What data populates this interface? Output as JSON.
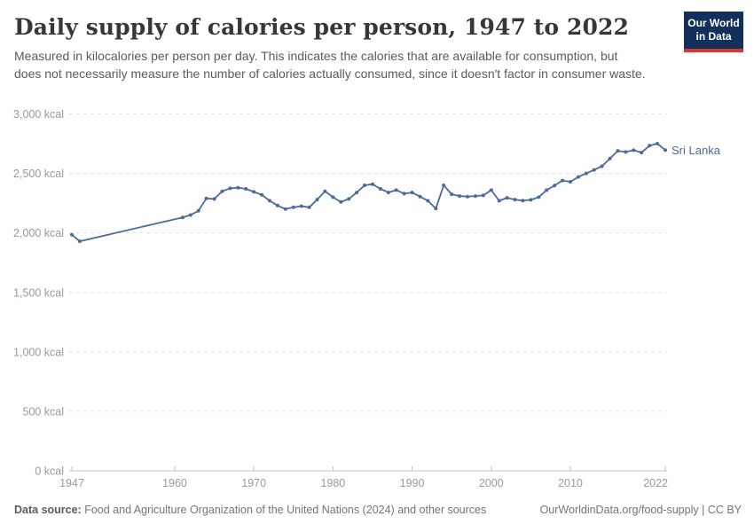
{
  "header": {
    "title": "Daily supply of calories per person, 1947 to 2022",
    "subtitle": "Measured in kilocalories per person per day. This indicates the calories that are available for consumption, but does not necessarily measure the number of calories actually consumed, since it doesn't factor in consumer waste.",
    "logo": {
      "line1": "Our World",
      "line2": "in Data",
      "bg_color": "#12305b",
      "accent_color": "#d7382e"
    }
  },
  "footer": {
    "datasource_label": "Data source:",
    "datasource_text": " Food and Agriculture Organization of the United Nations (2024) and other sources",
    "link_text": "OurWorldinData.org/food-supply | CC BY"
  },
  "colors": {
    "line": "#4C6A9C",
    "grid": "#dcdcdc",
    "axis": "#c2c2c2",
    "tick_label": "#9a9a9a",
    "entity_label": "#4C6A9C"
  },
  "chart_data": {
    "type": "line",
    "title": "Daily supply of calories per person, 1947 to 2022",
    "xlabel": "",
    "ylabel": "",
    "xlim": [
      1947,
      2022
    ],
    "ylim": [
      0,
      3000
    ],
    "grid": "horizontal-dashed",
    "legend_position": "end-of-line-label",
    "xticks": [
      1947,
      1960,
      1970,
      1980,
      1990,
      2000,
      2010,
      2022
    ],
    "yticks": [
      {
        "value": 0,
        "label": "0 kcal"
      },
      {
        "value": 500,
        "label": "500 kcal"
      },
      {
        "value": 1000,
        "label": "1,000 kcal"
      },
      {
        "value": 1500,
        "label": "1,500 kcal"
      },
      {
        "value": 2000,
        "label": "2,000 kcal"
      },
      {
        "value": 2500,
        "label": "2,500 kcal"
      },
      {
        "value": 3000,
        "label": "3,000 kcal"
      }
    ],
    "series": [
      {
        "name": "Sri Lanka",
        "unit": "kcal",
        "points": [
          [
            1947,
            1985
          ],
          [
            1948,
            1930
          ],
          [
            1961,
            2130
          ],
          [
            1962,
            2150
          ],
          [
            1963,
            2185
          ],
          [
            1964,
            2290
          ],
          [
            1965,
            2285
          ],
          [
            1966,
            2350
          ],
          [
            1967,
            2375
          ],
          [
            1968,
            2380
          ],
          [
            1969,
            2370
          ],
          [
            1970,
            2345
          ],
          [
            1971,
            2320
          ],
          [
            1972,
            2270
          ],
          [
            1973,
            2230
          ],
          [
            1974,
            2200
          ],
          [
            1975,
            2215
          ],
          [
            1976,
            2225
          ],
          [
            1977,
            2215
          ],
          [
            1978,
            2280
          ],
          [
            1979,
            2350
          ],
          [
            1980,
            2300
          ],
          [
            1981,
            2260
          ],
          [
            1982,
            2285
          ],
          [
            1983,
            2340
          ],
          [
            1984,
            2400
          ],
          [
            1985,
            2410
          ],
          [
            1986,
            2370
          ],
          [
            1987,
            2340
          ],
          [
            1988,
            2360
          ],
          [
            1989,
            2330
          ],
          [
            1990,
            2340
          ],
          [
            1991,
            2305
          ],
          [
            1992,
            2270
          ],
          [
            1993,
            2205
          ],
          [
            1994,
            2400
          ],
          [
            1995,
            2325
          ],
          [
            1996,
            2310
          ],
          [
            1997,
            2305
          ],
          [
            1998,
            2310
          ],
          [
            1999,
            2315
          ],
          [
            2000,
            2360
          ],
          [
            2001,
            2270
          ],
          [
            2002,
            2295
          ],
          [
            2003,
            2280
          ],
          [
            2004,
            2272
          ],
          [
            2005,
            2278
          ],
          [
            2006,
            2300
          ],
          [
            2007,
            2360
          ],
          [
            2008,
            2398
          ],
          [
            2009,
            2440
          ],
          [
            2010,
            2430
          ],
          [
            2011,
            2470
          ],
          [
            2012,
            2500
          ],
          [
            2013,
            2530
          ],
          [
            2014,
            2560
          ],
          [
            2015,
            2625
          ],
          [
            2016,
            2690
          ],
          [
            2017,
            2680
          ],
          [
            2018,
            2695
          ],
          [
            2019,
            2675
          ],
          [
            2020,
            2733
          ],
          [
            2021,
            2750
          ],
          [
            2022,
            2696
          ]
        ]
      }
    ]
  }
}
